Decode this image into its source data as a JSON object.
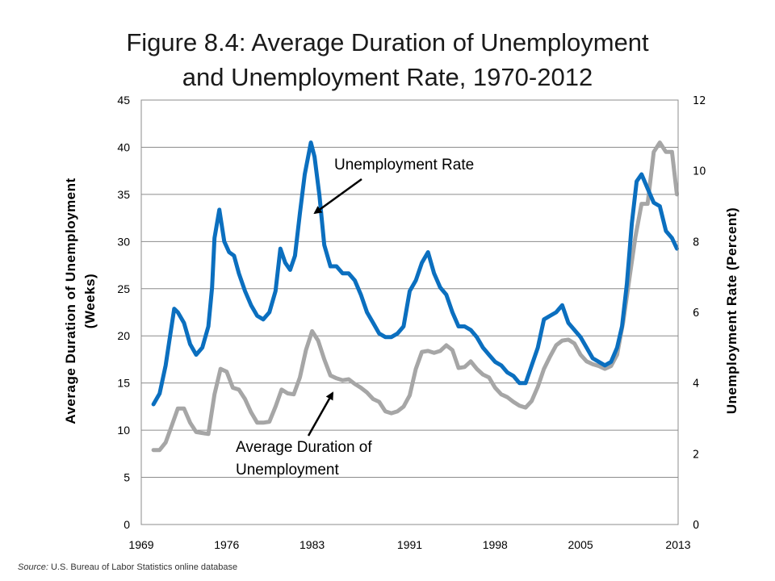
{
  "title_line1": "Figure 8.4: Average Duration of Unemployment",
  "title_line2": "and Unemployment Rate, 1970-2012",
  "source_label": "Source:",
  "source_text": "U.S. Bureau of Labor Statistics online database",
  "chart_data": {
    "type": "line",
    "ylabel_left_line1": "Average Duration of Unemployment",
    "ylabel_left_line2": "(Weeks)",
    "ylabel_right": "Unemployment Rate (Percent)",
    "xlim": [
      1969,
      2013
    ],
    "ylim_left": [
      0,
      45
    ],
    "ylim_right": [
      0,
      12
    ],
    "x_ticks": [
      "1969",
      "1976",
      "1983",
      "1991",
      "1998",
      "2005",
      "2013"
    ],
    "y_ticks_left": [
      "0",
      "5",
      "10",
      "15",
      "20",
      "25",
      "30",
      "35",
      "40",
      "45"
    ],
    "y_ticks_right": [
      "0",
      "2",
      "4",
      "6",
      "8",
      "10",
      "12"
    ],
    "grid": true,
    "annotations": [
      {
        "text": "Unemployment Rate",
        "points_to": "Unemployment Rate"
      },
      {
        "text_line1": "Average Duration of",
        "text_line2": "Unemployment",
        "points_to": "Average Duration of Unemployment"
      }
    ],
    "colors": {
      "unemployment_rate": "#0b6fbf",
      "duration": "#a6a6a6"
    },
    "series": [
      {
        "axis": "right",
        "color": "#0b6fbf",
        "x": [
          1970.0,
          1970.5,
          1971.0,
          1971.3,
          1971.7,
          1972.0,
          1972.5,
          1973.0,
          1973.5,
          1974.0,
          1974.5,
          1974.8,
          1975.0,
          1975.4,
          1975.8,
          1976.2,
          1976.6,
          1977.0,
          1977.5,
          1978.0,
          1978.5,
          1979.0,
          1979.5,
          1980.0,
          1980.4,
          1980.8,
          1981.2,
          1981.6,
          1982.0,
          1982.4,
          1982.9,
          1983.2,
          1983.6,
          1984.0,
          1984.5,
          1985.0,
          1985.5,
          1986.0,
          1986.5,
          1987.0,
          1987.5,
          1988.0,
          1988.5,
          1989.0,
          1989.5,
          1990.0,
          1990.5,
          1991.0,
          1991.5,
          1992.0,
          1992.5,
          1993.0,
          1993.5,
          1994.0,
          1994.5,
          1995.0,
          1995.5,
          1996.0,
          1996.5,
          1997.0,
          1997.5,
          1998.0,
          1998.5,
          1999.0,
          1999.5,
          2000.0,
          2000.5,
          2001.0,
          2001.5,
          2002.0,
          2002.5,
          2003.0,
          2003.5,
          2004.0,
          2004.5,
          2005.0,
          2005.5,
          2006.0,
          2006.5,
          2007.0,
          2007.5,
          2008.0,
          2008.4,
          2008.8,
          2009.2,
          2009.6,
          2010.0,
          2010.5,
          2011.0,
          2011.5,
          2012.0,
          2012.5,
          2012.9
        ],
        "y": [
          3.4,
          3.7,
          4.5,
          5.2,
          6.1,
          6.0,
          5.7,
          5.1,
          4.8,
          5.0,
          5.6,
          6.7,
          8.1,
          8.9,
          8.0,
          7.7,
          7.6,
          7.1,
          6.6,
          6.2,
          5.9,
          5.8,
          6.0,
          6.6,
          7.8,
          7.4,
          7.2,
          7.6,
          8.8,
          9.9,
          10.8,
          10.4,
          9.3,
          7.9,
          7.3,
          7.3,
          7.1,
          7.1,
          6.9,
          6.5,
          6.0,
          5.7,
          5.4,
          5.3,
          5.3,
          5.4,
          5.6,
          6.6,
          6.9,
          7.4,
          7.7,
          7.1,
          6.7,
          6.5,
          6.0,
          5.6,
          5.6,
          5.5,
          5.3,
          5.0,
          4.8,
          4.6,
          4.5,
          4.3,
          4.2,
          4.0,
          4.0,
          4.5,
          5.0,
          5.8,
          5.9,
          6.0,
          6.2,
          5.7,
          5.5,
          5.3,
          5.0,
          4.7,
          4.6,
          4.5,
          4.6,
          5.0,
          5.6,
          6.8,
          8.5,
          9.7,
          9.9,
          9.5,
          9.1,
          9.0,
          8.3,
          8.1,
          7.8
        ]
      },
      {
        "axis": "left",
        "color": "#a6a6a6",
        "x": [
          1970.0,
          1970.5,
          1971.0,
          1971.5,
          1972.0,
          1972.5,
          1973.0,
          1973.5,
          1974.0,
          1974.5,
          1975.0,
          1975.5,
          1976.0,
          1976.5,
          1977.0,
          1977.5,
          1978.0,
          1978.5,
          1979.0,
          1979.5,
          1980.0,
          1980.5,
          1981.0,
          1981.5,
          1982.0,
          1982.5,
          1983.0,
          1983.5,
          1984.0,
          1984.5,
          1985.0,
          1985.5,
          1986.0,
          1986.5,
          1987.0,
          1987.5,
          1988.0,
          1988.5,
          1989.0,
          1989.5,
          1990.0,
          1990.5,
          1991.0,
          1991.5,
          1992.0,
          1992.5,
          1993.0,
          1993.5,
          1994.0,
          1994.5,
          1995.0,
          1995.5,
          1996.0,
          1996.5,
          1997.0,
          1997.5,
          1998.0,
          1998.5,
          1999.0,
          1999.5,
          2000.0,
          2000.5,
          2001.0,
          2001.5,
          2002.0,
          2002.5,
          2003.0,
          2003.5,
          2004.0,
          2004.5,
          2005.0,
          2005.5,
          2006.0,
          2006.5,
          2007.0,
          2007.5,
          2008.0,
          2008.5,
          2009.0,
          2009.5,
          2010.0,
          2010.5,
          2011.0,
          2011.5,
          2012.0,
          2012.5,
          2012.9
        ],
        "y": [
          7.9,
          7.9,
          8.7,
          10.5,
          12.3,
          12.3,
          10.8,
          9.8,
          9.7,
          9.6,
          13.8,
          16.5,
          16.2,
          14.5,
          14.3,
          13.3,
          11.9,
          10.8,
          10.8,
          10.9,
          12.5,
          14.3,
          13.9,
          13.8,
          15.6,
          18.5,
          20.5,
          19.5,
          17.5,
          15.8,
          15.5,
          15.3,
          15.4,
          14.9,
          14.5,
          14.0,
          13.3,
          13.0,
          12.0,
          11.8,
          12.0,
          12.5,
          13.7,
          16.5,
          18.3,
          18.4,
          18.2,
          18.4,
          19.0,
          18.5,
          16.6,
          16.7,
          17.3,
          16.5,
          15.9,
          15.6,
          14.5,
          13.8,
          13.5,
          13.0,
          12.6,
          12.4,
          13.1,
          14.6,
          16.5,
          17.8,
          19.0,
          19.5,
          19.6,
          19.2,
          18.0,
          17.3,
          17.0,
          16.8,
          16.5,
          16.8,
          18.0,
          21.5,
          26.0,
          30.5,
          34.0,
          34.0,
          39.5,
          40.5,
          39.5,
          39.5,
          35.0
        ]
      }
    ]
  }
}
